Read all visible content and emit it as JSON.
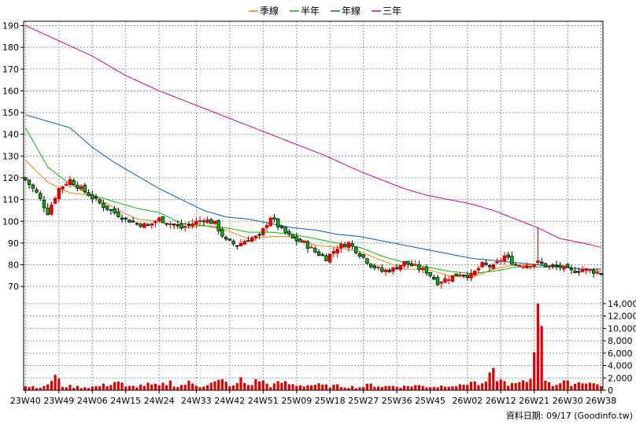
{
  "chart_data": {
    "type": "candlestick",
    "legend": {
      "placement": "top-center",
      "items": [
        {
          "name": "季線",
          "color": "#ff8000"
        },
        {
          "name": "半年",
          "color": "#00c000"
        },
        {
          "name": "年線",
          "color": "#0060c0"
        },
        {
          "name": "三年",
          "color": "#e0007a"
        }
      ]
    },
    "price_axis": {
      "ylim": [
        65,
        192
      ],
      "ticks": [
        70,
        80,
        90,
        100,
        110,
        120,
        130,
        140,
        150,
        160,
        170,
        180,
        190
      ],
      "position": "left"
    },
    "volume_axis": {
      "ylim": [
        0,
        14500
      ],
      "ticks": [
        0,
        2000,
        4000,
        6000,
        8000,
        10000,
        12000,
        14000
      ],
      "tick_labels": [
        "0",
        "2,000",
        "4,000",
        "6,000",
        "8,000",
        "10,000",
        "12,000",
        "14,000"
      ],
      "position": "right"
    },
    "x_ticks": [
      "23W40",
      "23W49",
      "24W06",
      "24W15",
      "24W24",
      "24W33",
      "24W42",
      "24W51",
      "25W09",
      "25W18",
      "25W27",
      "25W36",
      "25W45",
      "26W02",
      "26W12",
      "26W21",
      "26W30",
      "26W38"
    ],
    "bar_count": 156,
    "grid": true,
    "close_anchors": [
      [
        0,
        119
      ],
      [
        3,
        113
      ],
      [
        6,
        104
      ],
      [
        9,
        115
      ],
      [
        12,
        119
      ],
      [
        15,
        115
      ],
      [
        18,
        111
      ],
      [
        21,
        107
      ],
      [
        24,
        104
      ],
      [
        27,
        101
      ],
      [
        30,
        99
      ],
      [
        33,
        98
      ],
      [
        36,
        101
      ],
      [
        39,
        99
      ],
      [
        42,
        97
      ],
      [
        45,
        99
      ],
      [
        48,
        101
      ],
      [
        51,
        99
      ],
      [
        54,
        91
      ],
      [
        57,
        89
      ],
      [
        60,
        92
      ],
      [
        63,
        93
      ],
      [
        66,
        102
      ],
      [
        69,
        96
      ],
      [
        72,
        92
      ],
      [
        75,
        90
      ],
      [
        78,
        86
      ],
      [
        81,
        83
      ],
      [
        84,
        88
      ],
      [
        87,
        90
      ],
      [
        90,
        85
      ],
      [
        93,
        80
      ],
      [
        96,
        77
      ],
      [
        99,
        78
      ],
      [
        102,
        81
      ],
      [
        105,
        79
      ],
      [
        108,
        77
      ],
      [
        111,
        72
      ],
      [
        114,
        74
      ],
      [
        117,
        76
      ],
      [
        120,
        75
      ],
      [
        123,
        80
      ],
      [
        126,
        79
      ],
      [
        129,
        84
      ],
      [
        132,
        80
      ],
      [
        135,
        80
      ],
      [
        138,
        81
      ],
      [
        141,
        79
      ],
      [
        144,
        79
      ],
      [
        147,
        77
      ],
      [
        150,
        78
      ],
      [
        153,
        77
      ],
      [
        155,
        76
      ]
    ],
    "ma_anchors": {
      "季線": [
        [
          0,
          128
        ],
        [
          6,
          118
        ],
        [
          12,
          113
        ],
        [
          18,
          112
        ],
        [
          24,
          106
        ],
        [
          30,
          101
        ],
        [
          36,
          100
        ],
        [
          42,
          97
        ],
        [
          48,
          98
        ],
        [
          54,
          96
        ],
        [
          60,
          92
        ],
        [
          66,
          93
        ],
        [
          72,
          93
        ],
        [
          78,
          89
        ],
        [
          84,
          88
        ],
        [
          90,
          86
        ],
        [
          96,
          82
        ],
        [
          102,
          78
        ],
        [
          108,
          78
        ],
        [
          114,
          75
        ],
        [
          120,
          74
        ],
        [
          126,
          78
        ],
        [
          132,
          80
        ],
        [
          138,
          80
        ],
        [
          144,
          79
        ],
        [
          150,
          78
        ],
        [
          155,
          77
        ]
      ],
      "半年": [
        [
          0,
          143
        ],
        [
          6,
          125
        ],
        [
          12,
          117
        ],
        [
          18,
          112
        ],
        [
          24,
          109
        ],
        [
          30,
          106
        ],
        [
          36,
          104
        ],
        [
          42,
          99
        ],
        [
          48,
          98
        ],
        [
          54,
          97
        ],
        [
          60,
          95
        ],
        [
          66,
          95
        ],
        [
          72,
          94
        ],
        [
          78,
          92
        ],
        [
          84,
          90
        ],
        [
          90,
          88
        ],
        [
          96,
          84
        ],
        [
          102,
          81
        ],
        [
          108,
          79
        ],
        [
          114,
          77
        ],
        [
          120,
          76
        ],
        [
          126,
          77
        ],
        [
          132,
          79
        ],
        [
          138,
          79
        ],
        [
          144,
          79
        ],
        [
          150,
          78
        ],
        [
          155,
          78
        ]
      ],
      "年線": [
        [
          0,
          149
        ],
        [
          6,
          146
        ],
        [
          12,
          143
        ],
        [
          18,
          134
        ],
        [
          24,
          127
        ],
        [
          30,
          121
        ],
        [
          36,
          115
        ],
        [
          42,
          110
        ],
        [
          48,
          105
        ],
        [
          54,
          102
        ],
        [
          60,
          101
        ],
        [
          66,
          99
        ],
        [
          72,
          97
        ],
        [
          78,
          96
        ],
        [
          84,
          94
        ],
        [
          90,
          93
        ],
        [
          96,
          91
        ],
        [
          102,
          89
        ],
        [
          108,
          87
        ],
        [
          114,
          85
        ],
        [
          120,
          83
        ],
        [
          126,
          82
        ],
        [
          132,
          81
        ],
        [
          138,
          80
        ],
        [
          144,
          79
        ],
        [
          150,
          78
        ],
        [
          155,
          78
        ]
      ],
      "三年": [
        [
          0,
          190
        ],
        [
          9,
          183
        ],
        [
          18,
          176
        ],
        [
          27,
          167
        ],
        [
          36,
          160
        ],
        [
          45,
          154
        ],
        [
          54,
          148
        ],
        [
          63,
          142
        ],
        [
          72,
          136
        ],
        [
          81,
          130
        ],
        [
          90,
          123
        ],
        [
          96,
          119
        ],
        [
          102,
          115
        ],
        [
          108,
          112
        ],
        [
          114,
          110
        ],
        [
          120,
          108
        ],
        [
          126,
          105
        ],
        [
          132,
          101
        ],
        [
          138,
          97
        ],
        [
          144,
          92
        ],
        [
          150,
          90
        ],
        [
          155,
          88
        ]
      ]
    },
    "volume_anchors": [
      [
        0,
        700
      ],
      [
        5,
        500
      ],
      [
        8,
        2200
      ],
      [
        10,
        700
      ],
      [
        13,
        600
      ],
      [
        16,
        500
      ],
      [
        19,
        600
      ],
      [
        22,
        900
      ],
      [
        25,
        1500
      ],
      [
        27,
        500
      ],
      [
        30,
        700
      ],
      [
        33,
        900
      ],
      [
        36,
        700
      ],
      [
        39,
        1300
      ],
      [
        41,
        600
      ],
      [
        44,
        1200
      ],
      [
        47,
        700
      ],
      [
        50,
        1100
      ],
      [
        53,
        1500
      ],
      [
        56,
        600
      ],
      [
        58,
        1700
      ],
      [
        60,
        800
      ],
      [
        63,
        1700
      ],
      [
        66,
        700
      ],
      [
        69,
        1300
      ],
      [
        72,
        900
      ],
      [
        75,
        800
      ],
      [
        78,
        900
      ],
      [
        81,
        700
      ],
      [
        84,
        700
      ],
      [
        87,
        600
      ],
      [
        90,
        500
      ],
      [
        93,
        900
      ],
      [
        96,
        600
      ],
      [
        99,
        700
      ],
      [
        102,
        600
      ],
      [
        105,
        800
      ],
      [
        108,
        600
      ],
      [
        111,
        600
      ],
      [
        114,
        900
      ],
      [
        117,
        700
      ],
      [
        120,
        1400
      ],
      [
        123,
        800
      ],
      [
        126,
        2700
      ],
      [
        128,
        1500
      ],
      [
        131,
        900
      ],
      [
        134,
        1200
      ],
      [
        136,
        1800
      ],
      [
        138,
        14000
      ],
      [
        140,
        2000
      ],
      [
        142,
        900
      ],
      [
        145,
        1200
      ],
      [
        148,
        1100
      ],
      [
        151,
        1500
      ],
      [
        153,
        1000
      ],
      [
        155,
        900
      ]
    ],
    "footer_text": "資料日期: 09/17  (Goodinfo.tw)"
  },
  "colors": {
    "up": "#e00000",
    "down": "#000000",
    "volume": "#e00000",
    "grid": "#9a9a9a",
    "axis": "#000000"
  }
}
